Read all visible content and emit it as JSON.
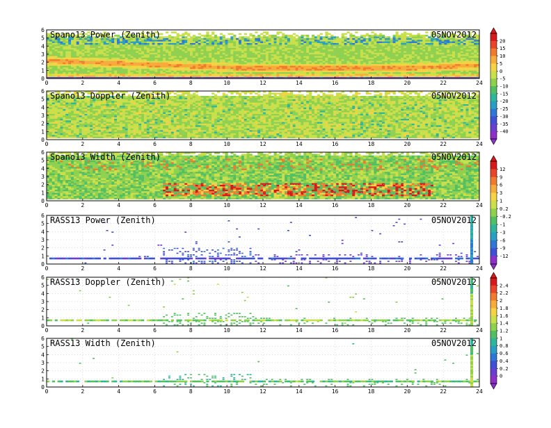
{
  "date_label": "05NOV2012",
  "chart_data": [
    {
      "type": "heatmap",
      "title": "Spano13 Power (Zenith)",
      "xlim": [
        0,
        24
      ],
      "ylim": [
        0,
        6
      ],
      "x_ticks": [
        "0",
        "2",
        "4",
        "6",
        "8",
        "10",
        "12",
        "14",
        "16",
        "18",
        "20",
        "22",
        "24"
      ],
      "y_ticks": [
        "0",
        "1",
        "2",
        "3",
        "4",
        "5",
        "6"
      ],
      "colorbar_group": "power_doppler_spano",
      "pattern": "profiler_power"
    },
    {
      "type": "heatmap",
      "title": "Spano13 Doppler (Zenith)",
      "xlim": [
        0,
        24
      ],
      "ylim": [
        0,
        6
      ],
      "x_ticks": [
        "0",
        "2",
        "4",
        "6",
        "8",
        "10",
        "12",
        "14",
        "16",
        "18",
        "20",
        "22",
        "24"
      ],
      "y_ticks": [
        "0",
        "1",
        "2",
        "3",
        "4",
        "5",
        "6"
      ],
      "colorbar_group": "power_doppler_spano",
      "pattern": "profiler_doppler"
    },
    {
      "type": "heatmap",
      "title": "Spano13 Width (Zenith)",
      "xlim": [
        0,
        24
      ],
      "ylim": [
        0,
        6
      ],
      "x_ticks": [
        "0",
        "2",
        "4",
        "6",
        "8",
        "10",
        "12",
        "14",
        "16",
        "18",
        "20",
        "22",
        "24"
      ],
      "y_ticks": [
        "0",
        "1",
        "2",
        "3",
        "4",
        "5",
        "6"
      ],
      "colorbar_group": "width_rass_power",
      "pattern": "profiler_width"
    },
    {
      "type": "heatmap",
      "title": "RASS13 Power (Zenith)",
      "xlim": [
        0,
        24
      ],
      "ylim": [
        0,
        6
      ],
      "x_ticks": [
        "0",
        "2",
        "4",
        "6",
        "8",
        "10",
        "12",
        "14",
        "16",
        "18",
        "20",
        "22",
        "24"
      ],
      "y_ticks": [
        "0",
        "1",
        "2",
        "3",
        "4",
        "5",
        "6"
      ],
      "colorbar_group": "width_rass_power",
      "pattern": "rass_power"
    },
    {
      "type": "heatmap",
      "title": "RASS13 Doppler (Zenith)",
      "xlim": [
        0,
        24
      ],
      "ylim": [
        0,
        6
      ],
      "x_ticks": [
        "0",
        "2",
        "4",
        "6",
        "8",
        "10",
        "12",
        "14",
        "16",
        "18",
        "20",
        "22",
        "24"
      ],
      "y_ticks": [
        "0",
        "1",
        "2",
        "3",
        "4",
        "5",
        "6"
      ],
      "colorbar_group": "rass_doppler_width",
      "pattern": "rass_doppler"
    },
    {
      "type": "heatmap",
      "title": "RASS13 Width (Zenith)",
      "xlim": [
        0,
        24
      ],
      "ylim": [
        0,
        6
      ],
      "x_ticks": [
        "0",
        "2",
        "4",
        "6",
        "8",
        "10",
        "12",
        "14",
        "16",
        "18",
        "20",
        "22",
        "24"
      ],
      "y_ticks": [
        "0",
        "1",
        "2",
        "3",
        "4",
        "5",
        "6"
      ],
      "colorbar_group": "rass_doppler_width",
      "pattern": "rass_width"
    }
  ],
  "colorbars": [
    {
      "id": "power_doppler_spano",
      "labels": [
        "20",
        "15",
        "10",
        "5",
        "0",
        "-5",
        "-10",
        "-15",
        "-20",
        "-25",
        "-30",
        "-35",
        "-40"
      ],
      "colors": [
        "#d7191c",
        "#e8452a",
        "#f07a2e",
        "#f7ab3a",
        "#f6d344",
        "#c9e04a",
        "#8fd14f",
        "#52c062",
        "#2fb59b",
        "#2a9fc4",
        "#3077d4",
        "#3f4fd6",
        "#6a3fd0",
        "#8e2fc7"
      ]
    },
    {
      "id": "width_rass_power",
      "labels": [
        "12",
        "9",
        "6",
        "3",
        "1",
        "0.2",
        "-0.2",
        "-1",
        "-3",
        "-6",
        "-9",
        "-12"
      ],
      "colors": [
        "#d7191c",
        "#e8452a",
        "#f07a2e",
        "#f7ab3a",
        "#f6d344",
        "#c9e04a",
        "#8fd14f",
        "#52c062",
        "#2fb59b",
        "#2a9fc4",
        "#3077d4",
        "#3f4fd6",
        "#8e2fc7"
      ]
    },
    {
      "id": "rass_doppler_width",
      "labels": [
        "2.4",
        "2.2",
        "2",
        "1.8",
        "1.6",
        "1.4",
        "1.2",
        "1",
        "0.8",
        "0.6",
        "0.4",
        "0.2",
        "0"
      ],
      "colors": [
        "#d7191c",
        "#e8452a",
        "#f07a2e",
        "#f7ab3a",
        "#f6d344",
        "#c9e04a",
        "#8fd14f",
        "#52c062",
        "#2fb59b",
        "#2a9fc4",
        "#3077d4",
        "#3f4fd6",
        "#6a3fd0",
        "#8e2fc7"
      ]
    }
  ]
}
